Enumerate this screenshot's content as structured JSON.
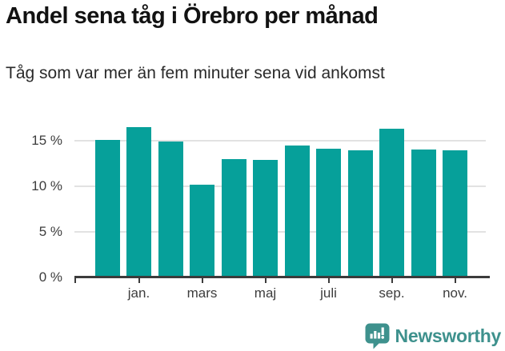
{
  "page": {
    "title": "Andel sena tåg i Örebro per månad",
    "subtitle": "Tåg som var mer än fem minuter sena vid ankomst"
  },
  "chart_data": {
    "type": "bar",
    "title": "Andel sena tåg i Örebro per månad",
    "subtitle": "Tåg som var mer än fem minuter sena vid ankomst",
    "unit": "%",
    "categories": [
      "",
      "jan.",
      "",
      "mars",
      "",
      "maj",
      "",
      "juli",
      "",
      "sep.",
      "",
      "nov."
    ],
    "values": [
      15.1,
      16.5,
      14.9,
      10.2,
      13.0,
      12.9,
      14.5,
      14.1,
      13.9,
      16.3,
      14.0,
      13.9
    ],
    "y_ticks": [
      {
        "value": 0,
        "label": "0 %"
      },
      {
        "value": 5,
        "label": "5 %"
      },
      {
        "value": 10,
        "label": "10 %"
      },
      {
        "value": 15,
        "label": "15 %"
      }
    ],
    "ylim": [
      0,
      17.5
    ],
    "grid": "horizontal",
    "legend": "none",
    "bar_color": "#06a09a"
  },
  "branding": {
    "logo_text": "Newsworthy",
    "logo_color": "#3e918d"
  },
  "colors": {
    "background": "#ffffff",
    "title_text": "#121212",
    "subtitle_text": "#2a2a2a",
    "axis_line": "#3b3b3b",
    "axis_label": "#3d3d3d",
    "gridline": "#e2e2e2"
  }
}
